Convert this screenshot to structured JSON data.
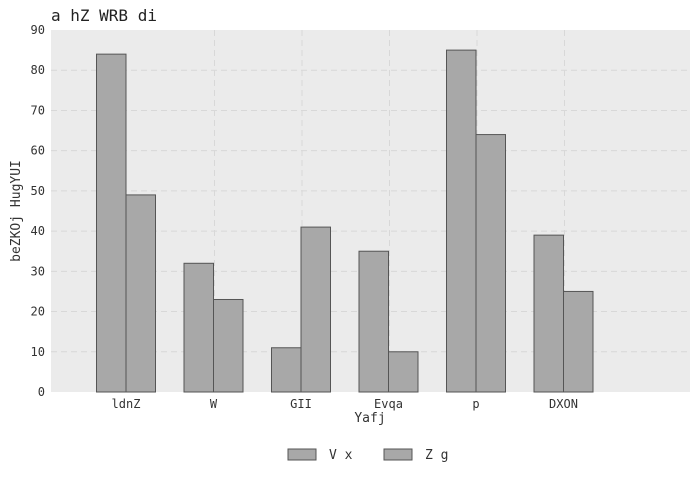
{
  "chart_data": {
    "type": "bar",
    "title": "a hZ WRB di",
    "xlabel": "Yafj",
    "ylabel": "beZKOj HugYUI",
    "categories": [
      "ldnZ",
      "W",
      "GII",
      "Evqa",
      "p",
      "DXON"
    ],
    "series": [
      {
        "name": "V x",
        "values": [
          84,
          32,
          11,
          35,
          85,
          39
        ],
        "color": "#a8a8a8"
      },
      {
        "name": "Z g",
        "values": [
          49,
          23,
          41,
          10,
          64,
          25
        ],
        "color": "#a8a8a8"
      }
    ],
    "ylim": [
      0,
      90
    ],
    "yticks": [
      0,
      10,
      20,
      30,
      40,
      50,
      60,
      70,
      80,
      90
    ],
    "grid": true,
    "legend_position": "bottom-center",
    "colors": {
      "plot_background": "#ebebeb",
      "grid": "#d8d8d8",
      "bar_edge": "#555555"
    }
  }
}
